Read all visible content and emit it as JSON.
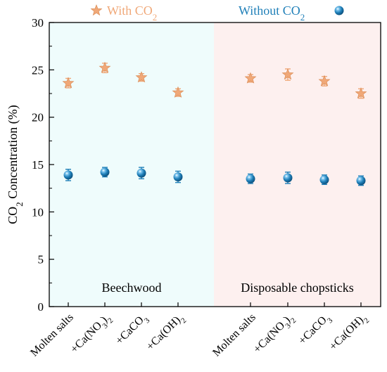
{
  "chart_data": {
    "type": "scatter",
    "ylabel": {
      "base": "CO",
      "sub": "2",
      "rest": " Concentration (%)"
    },
    "ylim": [
      0,
      30
    ],
    "yticks": [
      "0",
      "5",
      "10",
      "15",
      "20",
      "25",
      "30"
    ],
    "grid": false,
    "legend_position": "top",
    "regions": [
      {
        "label": "Beechwood",
        "color": "#effcfc"
      },
      {
        "label": "Disposable chopsticks",
        "color": "#fdf0ef"
      }
    ],
    "categories": [
      [
        {
          "t": "Molten salts"
        }
      ],
      [
        {
          "t": "+Ca(NO"
        },
        {
          "t": "3",
          "s": true
        },
        {
          "t": ")"
        },
        {
          "t": "2",
          "s": true
        }
      ],
      [
        {
          "t": "+CaCO"
        },
        {
          "t": "3",
          "s": true
        }
      ],
      [
        {
          "t": "+Ca(OH)"
        },
        {
          "t": "2",
          "s": true
        }
      ],
      [
        {
          "t": "Molten salts"
        }
      ],
      [
        {
          "t": "+Ca(NO"
        },
        {
          "t": "3",
          "s": true
        },
        {
          "t": ")"
        },
        {
          "t": "2",
          "s": true
        }
      ],
      [
        {
          "t": "+CaCO"
        },
        {
          "t": "3",
          "s": true
        }
      ],
      [
        {
          "t": "+Ca(OH)"
        },
        {
          "t": "2",
          "s": true
        }
      ]
    ],
    "series": [
      {
        "name": {
          "base": "With CO",
          "sub": "2"
        },
        "marker": "star",
        "color": "#f0a878",
        "values": [
          23.6,
          25.2,
          24.2,
          22.6,
          24.1,
          24.5,
          23.8,
          22.5
        ],
        "errors": [
          0.5,
          0.5,
          0.4,
          0.4,
          0.4,
          0.6,
          0.5,
          0.5
        ]
      },
      {
        "name": {
          "base": "Without CO",
          "sub": "2"
        },
        "marker": "sphere",
        "color": "#1f7fb8",
        "values": [
          13.9,
          14.2,
          14.1,
          13.7,
          13.5,
          13.6,
          13.4,
          13.3
        ],
        "errors": [
          0.6,
          0.5,
          0.6,
          0.6,
          0.5,
          0.6,
          0.5,
          0.5
        ]
      }
    ]
  }
}
